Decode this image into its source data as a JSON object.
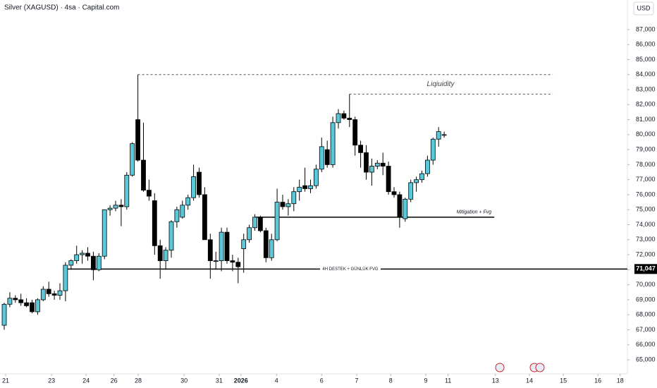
{
  "chart_data": {
    "type": "candlestick",
    "title": "Silver (XAGUSD) · 4sa · Capital.com",
    "currency": "USD",
    "up_color": "#5ac8d8",
    "down_color": "#000000",
    "open": [
      67300,
      68700,
      69100,
      69000,
      68800,
      68800,
      68200,
      69000,
      69700,
      69400,
      69300,
      69600,
      71300,
      71600,
      72000,
      72100,
      71900,
      71000,
      71900,
      75000,
      75100,
      75300,
      75200,
      77300,
      81000,
      78300,
      76300,
      75600,
      72600,
      71600,
      72300,
      74200,
      74500,
      75300,
      75800,
      77500,
      76000,
      73000,
      71600,
      71600,
      73500,
      71600,
      71500,
      72400,
      73000,
      73800,
      74500,
      73600,
      71800,
      73000,
      75500,
      75200,
      75400,
      76200,
      76600,
      76400,
      76600,
      77700,
      79000,
      78000,
      80800,
      81400,
      81100,
      81000,
      79300,
      78800,
      77500,
      77900,
      78100,
      77900,
      76200,
      76000,
      74400,
      75700,
      76800,
      77000,
      77400,
      78300,
      79700,
      80000
    ],
    "high": [
      68800,
      69500,
      69300,
      69400,
      69100,
      69000,
      69100,
      69900,
      70200,
      69600,
      70100,
      71500,
      71700,
      72600,
      72300,
      72500,
      72200,
      72100,
      75000,
      75300,
      75600,
      75700,
      77500,
      79500,
      84000,
      80800,
      77000,
      76100,
      73000,
      72500,
      74300,
      75200,
      75600,
      76000,
      78000,
      77800,
      76500,
      73400,
      72200,
      73800,
      73800,
      72000,
      71800,
      73400,
      74000,
      74700,
      74600,
      73800,
      73400,
      76400,
      76000,
      75700,
      76500,
      77000,
      77800,
      77000,
      78000,
      79800,
      79600,
      81200,
      81700,
      81600,
      82700,
      81200,
      79600,
      79300,
      78400,
      78300,
      78800,
      78200,
      76500,
      76200,
      75800,
      77000,
      77200,
      77600,
      78600,
      79800,
      80500,
      80200
    ],
    "low": [
      67000,
      68500,
      68800,
      68600,
      68500,
      68100,
      68000,
      68900,
      69200,
      69000,
      69000,
      68900,
      71000,
      71400,
      71400,
      71600,
      70300,
      70900,
      71700,
      74600,
      74900,
      73900,
      75000,
      77200,
      78200,
      76200,
      75600,
      72000,
      70400,
      71000,
      71800,
      73800,
      74400,
      75000,
      75600,
      75800,
      73000,
      70400,
      71000,
      70900,
      71400,
      70900,
      70100,
      70800,
      72800,
      73600,
      73500,
      71500,
      71600,
      72900,
      75000,
      74600,
      74900,
      75600,
      76200,
      76100,
      76400,
      77500,
      77800,
      77800,
      80400,
      81000,
      80500,
      78600,
      77800,
      77000,
      76600,
      77700,
      77300,
      76000,
      75800,
      73800,
      74200,
      75500,
      76200,
      76800,
      77200,
      78000,
      79200,
      79800
    ],
    "close": [
      68700,
      69100,
      69000,
      68800,
      68600,
      68200,
      69000,
      69700,
      69400,
      69300,
      69600,
      71300,
      71600,
      72000,
      72100,
      71900,
      71000,
      71900,
      75000,
      75100,
      75300,
      75200,
      77300,
      79400,
      78300,
      76300,
      75900,
      72600,
      71600,
      72300,
      74200,
      75000,
      75300,
      75800,
      77200,
      76000,
      73000,
      71600,
      71600,
      73500,
      71600,
      71500,
      71200,
      73000,
      73800,
      74500,
      73600,
      71800,
      73000,
      75500,
      75200,
      75400,
      76200,
      76500,
      76400,
      76600,
      77700,
      79200,
      78000,
      80800,
      81400,
      81100,
      81000,
      79300,
      78800,
      77500,
      77900,
      78100,
      77900,
      76200,
      76000,
      74500,
      75700,
      76800,
      77000,
      77400,
      78300,
      79700,
      80200,
      80000
    ],
    "xlim": [
      -0.76,
      111.9
    ],
    "xticks": [
      {
        "value": 0.25,
        "label": "21"
      },
      {
        "value": 8.5,
        "label": "23"
      },
      {
        "value": 14.7,
        "label": "24"
      },
      {
        "value": 19.7,
        "label": "26"
      },
      {
        "value": 24.05,
        "label": "28"
      },
      {
        "value": 32.3,
        "label": "30"
      },
      {
        "value": 38.6,
        "label": "31"
      },
      {
        "value": 42.5,
        "label": "2026"
      },
      {
        "value": 48.9,
        "label": "4"
      },
      {
        "value": 57.0,
        "label": "6"
      },
      {
        "value": 63.3,
        "label": "7"
      },
      {
        "value": 69.4,
        "label": "8"
      },
      {
        "value": 75.7,
        "label": "9"
      },
      {
        "value": 79.7,
        "label": "11"
      },
      {
        "value": 88.2,
        "label": "13"
      },
      {
        "value": 94.3,
        "label": "14"
      },
      {
        "value": 100.4,
        "label": "15"
      },
      {
        "value": 106.6,
        "label": "16"
      },
      {
        "value": 110.6,
        "label": "18"
      }
    ],
    "ylim": [
      64060,
      88970
    ],
    "yticks": [
      {
        "value": 65000,
        "label": "65,000"
      },
      {
        "value": 66000,
        "label": "66,000"
      },
      {
        "value": 67000,
        "label": "67,000"
      },
      {
        "value": 68000,
        "label": "68,000"
      },
      {
        "value": 69000,
        "label": "69,000"
      },
      {
        "value": 70000,
        "label": "70,000"
      },
      {
        "value": 71000,
        "label": "71,000"
      },
      {
        "value": 72000,
        "label": "72,000"
      },
      {
        "value": 73000,
        "label": "73,000"
      },
      {
        "value": 74000,
        "label": "74,000"
      },
      {
        "value": 75000,
        "label": "75,000"
      },
      {
        "value": 76000,
        "label": "76,000"
      },
      {
        "value": 77000,
        "label": "77,000"
      },
      {
        "value": 78000,
        "label": "78,000"
      },
      {
        "value": 79000,
        "label": "79,000"
      },
      {
        "value": 80000,
        "label": "80,000"
      },
      {
        "value": 81000,
        "label": "81,000"
      },
      {
        "value": 82000,
        "label": "82,000"
      },
      {
        "value": 83000,
        "label": "83,000"
      },
      {
        "value": 84000,
        "label": "84,000"
      },
      {
        "value": 85000,
        "label": "85,000"
      },
      {
        "value": 86000,
        "label": "86,000"
      },
      {
        "value": 87000,
        "label": "87,000"
      }
    ],
    "liquidity": {
      "label": "Liqiuidity",
      "levels": [
        {
          "value": 84000,
          "x0": 24,
          "x1": 98.5
        },
        {
          "value": 82700,
          "x0": 62,
          "x1": 98.5
        }
      ]
    },
    "mitigation": {
      "label": "Mitigation + Fvg",
      "value": 74500,
      "x0": 45,
      "x1": 88
    },
    "support": {
      "label": "4H DESTEK + GÜNLÜK FVG",
      "value": 71047,
      "value_label": "71,047",
      "x0": 11,
      "x1": 111.9
    }
  }
}
